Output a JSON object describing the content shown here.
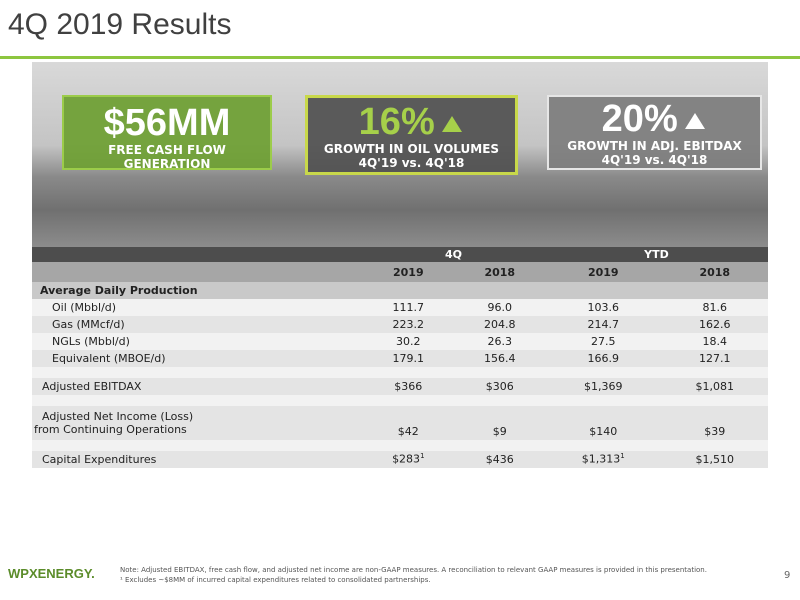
{
  "header": {
    "title": "4Q 2019 Results"
  },
  "highlights": [
    {
      "value": "$56MM",
      "caption": [
        "FREE CASH FLOW GENERATION"
      ]
    },
    {
      "value": "16%",
      "caption": [
        "GROWTH IN OIL VOLUMES",
        "4Q'19 vs. 4Q'18"
      ]
    },
    {
      "value": "20%",
      "caption": [
        "GROWTH IN ADJ. EBITDAX",
        "4Q'19 vs. 4Q'18"
      ]
    }
  ],
  "table": {
    "groups": [
      "4Q",
      "YTD"
    ],
    "years": [
      "2019",
      "2018",
      "2019",
      "2018"
    ],
    "section": "Average Daily Production",
    "rows": [
      {
        "label": [
          "Oil (Mbbl/d)"
        ],
        "cells": [
          {
            "text": "111.7"
          },
          {
            "text": "96.0"
          },
          {
            "text": "103.6"
          },
          {
            "text": "81.6"
          }
        ]
      },
      {
        "label": [
          "Gas (MMcf/d)"
        ],
        "cells": [
          {
            "text": "223.2"
          },
          {
            "text": "204.8"
          },
          {
            "text": "214.7"
          },
          {
            "text": "162.6"
          }
        ]
      },
      {
        "label": [
          "NGLs (Mbbl/d)"
        ],
        "cells": [
          {
            "text": "30.2"
          },
          {
            "text": "26.3"
          },
          {
            "text": "27.5"
          },
          {
            "text": "18.4"
          }
        ]
      },
      {
        "label": [
          "Equivalent (MBOE/d)"
        ],
        "cells": [
          {
            "text": "179.1"
          },
          {
            "text": "156.4"
          },
          {
            "text": "166.9"
          },
          {
            "text": "127.1"
          }
        ]
      },
      {
        "label": [
          "Adjusted EBITDAX"
        ],
        "cells": [
          {
            "text": "$366"
          },
          {
            "text": "$306"
          },
          {
            "text": "$1,369"
          },
          {
            "text": "$1,081"
          }
        ]
      },
      {
        "label": [
          "Adjusted Net Income (Loss)",
          "from Continuing Operations"
        ],
        "cells": [
          {
            "text": "$42"
          },
          {
            "text": "$9"
          },
          {
            "text": "$140"
          },
          {
            "text": "$39"
          }
        ]
      },
      {
        "label": [
          "Capital Expenditures"
        ],
        "cells": [
          {
            "text": "$283",
            "note": "1"
          },
          {
            "text": "$436"
          },
          {
            "text": "$1,313",
            "note": "1"
          },
          {
            "text": "$1,510"
          }
        ]
      }
    ]
  },
  "footer": {
    "logo": "WPXENERGY.",
    "notes": [
      "Note: Adjusted EBITDAX, free cash flow, and adjusted net income are non-GAAP measures. A reconciliation to relevant GAAP measures is provided in this presentation.",
      "¹ Excludes ~$8MM of incurred capital expenditures related to consolidated partnerships."
    ],
    "page": "9"
  }
}
